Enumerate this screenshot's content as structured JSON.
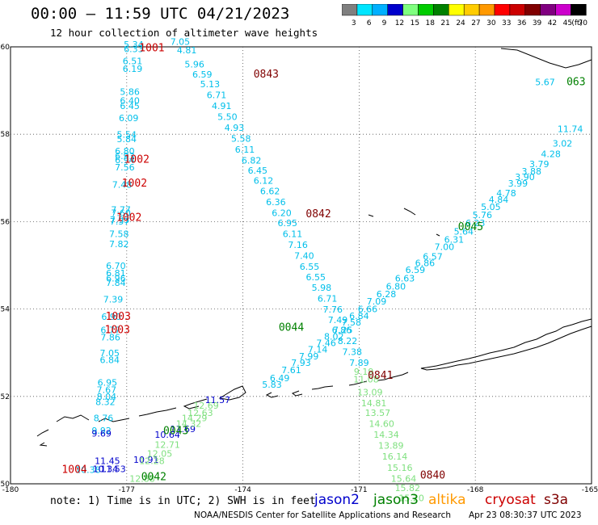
{
  "title": "00:00 – 11:59 UTC 04/21/2023",
  "subtitle": "12 hour collection of altimeter wave heights",
  "legend": {
    "unit": "(ft)",
    "bins": [
      {
        "label": "3",
        "color": "#7f7f7f"
      },
      {
        "label": "6",
        "color": "#00e5ff"
      },
      {
        "label": "9",
        "color": "#00b0ff"
      },
      {
        "label": "12",
        "color": "#0000cc"
      },
      {
        "label": "15",
        "color": "#7fff7f"
      },
      {
        "label": "18",
        "color": "#00cc00"
      },
      {
        "label": "21",
        "color": "#008000"
      },
      {
        "label": "24",
        "color": "#ffff00"
      },
      {
        "label": "27",
        "color": "#ffcc00"
      },
      {
        "label": "30",
        "color": "#ff9900"
      },
      {
        "label": "33",
        "color": "#ff0000"
      },
      {
        "label": "36",
        "color": "#cc0000"
      },
      {
        "label": "39",
        "color": "#800000"
      },
      {
        "label": "42",
        "color": "#800080"
      },
      {
        "label": "45",
        "color": "#cc00cc"
      },
      {
        "label": "70",
        "color": "#000000"
      }
    ]
  },
  "axes": {
    "lon_ticks": [
      "-180",
      "-177",
      "-174",
      "-171",
      "-168",
      "-165"
    ],
    "lat_ticks": [
      "60",
      "58",
      "56",
      "54",
      "52",
      "50"
    ]
  },
  "note": "note: 1) Time is in UTC; 2) SWH is in feet",
  "satellites": [
    {
      "name": "jason2",
      "color": "#0000cc"
    },
    {
      "name": "jason3",
      "color": "#008000"
    },
    {
      "name": "altika",
      "color": "#ff9900"
    },
    {
      "name": "cryosat",
      "color": "#cc0000"
    },
    {
      "name": "s3a",
      "color": "#800000"
    }
  ],
  "credit": "NOAA/NESDIS Center for Satellite Applications and Research",
  "timestamp": "Apr 23 08:30:37 UTC 2023",
  "time_labels": [
    {
      "text": "1001",
      "color": "#cc0000",
      "lon": -176.35,
      "lat": 59.9
    },
    {
      "text": "1002",
      "color": "#cc0000",
      "lon": -176.74,
      "lat": 57.35
    },
    {
      "text": "1002",
      "color": "#cc0000",
      "lon": -176.8,
      "lat": 56.8
    },
    {
      "text": "1002",
      "color": "#cc0000",
      "lon": -176.94,
      "lat": 56.02
    },
    {
      "text": "1003",
      "color": "#cc0000",
      "lon": -177.22,
      "lat": 53.75
    },
    {
      "text": "1003",
      "color": "#cc0000",
      "lon": -177.24,
      "lat": 53.45
    },
    {
      "text": "1004",
      "color": "#cc0000",
      "lon": -178.35,
      "lat": 50.25
    },
    {
      "text": "0843",
      "color": "#800000",
      "lon": -173.4,
      "lat": 59.3
    },
    {
      "text": "0842",
      "color": "#800000",
      "lon": -172.05,
      "lat": 56.1
    },
    {
      "text": "0841",
      "color": "#800000",
      "lon": -170.45,
      "lat": 52.4
    },
    {
      "text": "0840",
      "color": "#800000",
      "lon": -169.1,
      "lat": 50.12
    },
    {
      "text": "0045",
      "color": "#008000",
      "lon": -168.12,
      "lat": 55.8
    },
    {
      "text": "0044",
      "color": "#008000",
      "lon": -172.75,
      "lat": 53.5
    },
    {
      "text": "0043",
      "color": "#008000",
      "lon": -175.73,
      "lat": 51.14
    },
    {
      "text": "0042",
      "color": "#008000",
      "lon": -176.3,
      "lat": 50.08
    },
    {
      "text": "063",
      "color": "#008000",
      "lon": -165.4,
      "lat": 59.12
    }
  ],
  "tracks": [
    {
      "satellite": "cryosat",
      "color": "#00bfea",
      "points": [
        {
          "v": "5.34",
          "lon": -176.82,
          "lat": 59.98
        },
        {
          "v": "6.33",
          "lon": -176.82,
          "lat": 59.88
        },
        {
          "v": "6.51",
          "lon": -176.85,
          "lat": 59.6
        },
        {
          "v": "6.19",
          "lon": -176.85,
          "lat": 59.43
        },
        {
          "v": "5.86",
          "lon": -176.92,
          "lat": 58.9
        },
        {
          "v": "6.40",
          "lon": -176.92,
          "lat": 58.7
        },
        {
          "v": "6.45",
          "lon": -176.92,
          "lat": 58.58
        },
        {
          "v": "6.09",
          "lon": -176.95,
          "lat": 58.3
        },
        {
          "v": "5.54",
          "lon": -177.0,
          "lat": 57.92
        },
        {
          "v": "5.84",
          "lon": -177.0,
          "lat": 57.82
        },
        {
          "v": "6.80",
          "lon": -177.05,
          "lat": 57.54
        },
        {
          "v": "6.93",
          "lon": -177.05,
          "lat": 57.43
        },
        {
          "v": "6.94",
          "lon": -177.05,
          "lat": 57.34
        },
        {
          "v": "7.56",
          "lon": -177.05,
          "lat": 57.17
        },
        {
          "v": "7.48",
          "lon": -177.12,
          "lat": 56.77
        },
        {
          "v": "7.77",
          "lon": -177.15,
          "lat": 56.2
        },
        {
          "v": "7.60",
          "lon": -177.15,
          "lat": 56.13
        },
        {
          "v": "7.93",
          "lon": -177.18,
          "lat": 55.97
        },
        {
          "v": "7.57",
          "lon": -177.18,
          "lat": 55.93
        },
        {
          "v": "7.58",
          "lon": -177.2,
          "lat": 55.65
        },
        {
          "v": "7.82",
          "lon": -177.2,
          "lat": 55.42
        },
        {
          "v": "6.70",
          "lon": -177.28,
          "lat": 54.92
        },
        {
          "v": "6.81",
          "lon": -177.28,
          "lat": 54.75
        },
        {
          "v": "6.96",
          "lon": -177.28,
          "lat": 54.63
        },
        {
          "v": "7.84",
          "lon": -177.28,
          "lat": 54.53
        },
        {
          "v": "7.39",
          "lon": -177.35,
          "lat": 54.15
        },
        {
          "v": "6.90",
          "lon": -177.4,
          "lat": 53.75
        },
        {
          "v": "6.77",
          "lon": -177.42,
          "lat": 53.45
        },
        {
          "v": "7.86",
          "lon": -177.42,
          "lat": 53.28
        },
        {
          "v": "7.05",
          "lon": -177.44,
          "lat": 52.92
        },
        {
          "v": "6.84",
          "lon": -177.44,
          "lat": 52.76
        },
        {
          "v": "6.95",
          "lon": -177.5,
          "lat": 52.25
        },
        {
          "v": "7.67",
          "lon": -177.52,
          "lat": 52.08
        },
        {
          "v": "8.04",
          "lon": -177.52,
          "lat": 51.92
        },
        {
          "v": "8.32",
          "lon": -177.55,
          "lat": 51.8
        },
        {
          "v": "8.76",
          "lon": -177.6,
          "lat": 51.43
        },
        {
          "v": "9.92",
          "lon": -177.65,
          "lat": 51.15
        },
        {
          "v": "10.38",
          "lon": -178.0,
          "lat": 50.25
        }
      ]
    },
    {
      "satellite": "cryosat-2",
      "color": "#00bfea",
      "points": [
        {
          "v": "7.05",
          "lon": -175.62,
          "lat": 60.05
        },
        {
          "v": "4.81",
          "lon": -175.45,
          "lat": 59.85
        },
        {
          "v": "5.96",
          "lon": -175.25,
          "lat": 59.53
        },
        {
          "v": "6.59",
          "lon": -175.05,
          "lat": 59.3
        },
        {
          "v": "5.13",
          "lon": -174.85,
          "lat": 59.08
        },
        {
          "v": "6.71",
          "lon": -174.68,
          "lat": 58.83
        },
        {
          "v": "4.91",
          "lon": -174.55,
          "lat": 58.58
        },
        {
          "v": "5.50",
          "lon": -174.4,
          "lat": 58.33
        },
        {
          "v": "4.93",
          "lon": -174.22,
          "lat": 58.08
        },
        {
          "v": "5.58",
          "lon": -174.05,
          "lat": 57.83
        },
        {
          "v": "6.11",
          "lon": -173.95,
          "lat": 57.58
        },
        {
          "v": "6.82",
          "lon": -173.78,
          "lat": 57.33
        },
        {
          "v": "6.45",
          "lon": -173.62,
          "lat": 57.1
        },
        {
          "v": "6.12",
          "lon": -173.47,
          "lat": 56.87
        },
        {
          "v": "6.62",
          "lon": -173.3,
          "lat": 56.63
        },
        {
          "v": "6.36",
          "lon": -173.15,
          "lat": 56.38
        },
        {
          "v": "6.20",
          "lon": -173.0,
          "lat": 56.13
        },
        {
          "v": "6.95",
          "lon": -172.85,
          "lat": 55.9
        },
        {
          "v": "6.11",
          "lon": -172.72,
          "lat": 55.65
        },
        {
          "v": "7.16",
          "lon": -172.58,
          "lat": 55.4
        },
        {
          "v": "7.40",
          "lon": -172.42,
          "lat": 55.15
        },
        {
          "v": "6.55",
          "lon": -172.28,
          "lat": 54.9
        },
        {
          "v": "6.55",
          "lon": -172.12,
          "lat": 54.66
        },
        {
          "v": "5.98",
          "lon": -171.97,
          "lat": 54.42
        },
        {
          "v": "6.71",
          "lon": -171.82,
          "lat": 54.17
        },
        {
          "v": "7.76",
          "lon": -171.68,
          "lat": 53.92
        },
        {
          "v": "7.49",
          "lon": -171.55,
          "lat": 53.68
        },
        {
          "v": "6.86",
          "lon": -171.45,
          "lat": 53.45
        },
        {
          "v": "8.22",
          "lon": -171.3,
          "lat": 53.2
        },
        {
          "v": "7.38",
          "lon": -171.18,
          "lat": 52.95
        },
        {
          "v": "7.89",
          "lon": -171.0,
          "lat": 52.7
        }
      ]
    },
    {
      "satellite": "jason3",
      "color": "#7fe07f",
      "points": [
        {
          "v": "9.19",
          "lon": -170.88,
          "lat": 52.5
        },
        {
          "v": "11.08",
          "lon": -170.82,
          "lat": 52.32
        },
        {
          "v": "13.09",
          "lon": -170.72,
          "lat": 52.02
        },
        {
          "v": "14.81",
          "lon": -170.62,
          "lat": 51.77
        },
        {
          "v": "13.57",
          "lon": -170.52,
          "lat": 51.55
        },
        {
          "v": "14.60",
          "lon": -170.42,
          "lat": 51.3
        },
        {
          "v": "14.34",
          "lon": -170.3,
          "lat": 51.05
        },
        {
          "v": "13.89",
          "lon": -170.18,
          "lat": 50.8
        },
        {
          "v": "16.14",
          "lon": -170.08,
          "lat": 50.55
        },
        {
          "v": "15.16",
          "lon": -169.95,
          "lat": 50.3
        },
        {
          "v": "15.64",
          "lon": -169.85,
          "lat": 50.05
        },
        {
          "v": "15.82",
          "lon": -169.75,
          "lat": 49.83
        },
        {
          "v": "15.20",
          "lon": -169.65,
          "lat": 49.6
        }
      ]
    },
    {
      "satellite": "jason3-asc",
      "color": "#00bfea",
      "points": [
        {
          "v": "11.74",
          "lon": -165.55,
          "lat": 58.05
        },
        {
          "v": "3.02",
          "lon": -165.75,
          "lat": 57.72
        },
        {
          "v": "4.28",
          "lon": -166.05,
          "lat": 57.48
        },
        {
          "v": "3.79",
          "lon": -166.35,
          "lat": 57.25
        },
        {
          "v": "3.88",
          "lon": -166.55,
          "lat": 57.08
        },
        {
          "v": "3.90",
          "lon": -166.72,
          "lat": 56.95
        },
        {
          "v": "3.99",
          "lon": -166.9,
          "lat": 56.8
        },
        {
          "v": "4.78",
          "lon": -167.2,
          "lat": 56.58
        },
        {
          "v": "4.84",
          "lon": -167.4,
          "lat": 56.43
        },
        {
          "v": "5.05",
          "lon": -167.6,
          "lat": 56.27
        },
        {
          "v": "5.76",
          "lon": -167.82,
          "lat": 56.08
        },
        {
          "v": "6.23",
          "lon": -168.0,
          "lat": 55.9
        },
        {
          "v": "5.64",
          "lon": -168.3,
          "lat": 55.7
        },
        {
          "v": "6.31",
          "lon": -168.55,
          "lat": 55.52
        },
        {
          "v": "7.00",
          "lon": -168.8,
          "lat": 55.35
        },
        {
          "v": "6.57",
          "lon": -169.1,
          "lat": 55.13
        },
        {
          "v": "6.86",
          "lon": -169.3,
          "lat": 54.98
        },
        {
          "v": "6.59",
          "lon": -169.55,
          "lat": 54.82
        },
        {
          "v": "6.63",
          "lon": -169.82,
          "lat": 54.63
        },
        {
          "v": "6.80",
          "lon": -170.05,
          "lat": 54.45
        },
        {
          "v": "6.28",
          "lon": -170.3,
          "lat": 54.27
        },
        {
          "v": "7.09",
          "lon": -170.55,
          "lat": 54.1
        },
        {
          "v": "6.66",
          "lon": -170.78,
          "lat": 53.93
        },
        {
          "v": "6.84",
          "lon": -171.0,
          "lat": 53.77
        },
        {
          "v": "7.58",
          "lon": -171.2,
          "lat": 53.62
        },
        {
          "v": "7.25",
          "lon": -171.42,
          "lat": 53.45
        },
        {
          "v": "8.02",
          "lon": -171.65,
          "lat": 53.3
        },
        {
          "v": "7.46",
          "lon": -171.85,
          "lat": 53.15
        },
        {
          "v": "7.14",
          "lon": -172.07,
          "lat": 53.0
        },
        {
          "v": "7.99",
          "lon": -172.3,
          "lat": 52.85
        },
        {
          "v": "7.93",
          "lon": -172.5,
          "lat": 52.7
        },
        {
          "v": "7.61",
          "lon": -172.75,
          "lat": 52.53
        },
        {
          "v": "6.49",
          "lon": -173.05,
          "lat": 52.35
        },
        {
          "v": "5.83",
          "lon": -173.25,
          "lat": 52.2
        }
      ]
    },
    {
      "satellite": "jason3-b",
      "color": "#00bfea",
      "points": [
        {
          "v": "5.67",
          "lon": -166.2,
          "lat": 59.12
        }
      ]
    },
    {
      "satellite": "jason2-mid",
      "color": "#0000cc",
      "points": [
        {
          "v": "11.57",
          "lon": -174.65,
          "lat": 51.85
        },
        {
          "v": "11.69",
          "lon": -175.55,
          "lat": 51.18
        },
        {
          "v": "10.64",
          "lon": -175.95,
          "lat": 51.05
        },
        {
          "v": "10.91",
          "lon": -176.5,
          "lat": 50.48
        },
        {
          "v": "11.45",
          "lon": -177.5,
          "lat": 50.45
        },
        {
          "v": "10.34",
          "lon": -177.55,
          "lat": 50.27
        },
        {
          "v": "11.53",
          "lon": -177.35,
          "lat": 50.27
        },
        {
          "v": "9.69",
          "lon": -177.65,
          "lat": 51.08
        }
      ]
    },
    {
      "satellite": "jason3-mid",
      "color": "#7fe07f",
      "points": [
        {
          "v": "12.69",
          "lon": -174.95,
          "lat": 51.72
        },
        {
          "v": "12.63",
          "lon": -175.1,
          "lat": 51.55
        },
        {
          "v": "14.29",
          "lon": -175.25,
          "lat": 51.43
        },
        {
          "v": "14.32",
          "lon": -175.4,
          "lat": 51.3
        },
        {
          "v": "12.71",
          "lon": -175.95,
          "lat": 50.82
        },
        {
          "v": "12.05",
          "lon": -176.15,
          "lat": 50.62
        },
        {
          "v": "12.28",
          "lon": -176.35,
          "lat": 50.45
        },
        {
          "v": "12.88",
          "lon": -176.6,
          "lat": 50.05
        }
      ]
    }
  ]
}
